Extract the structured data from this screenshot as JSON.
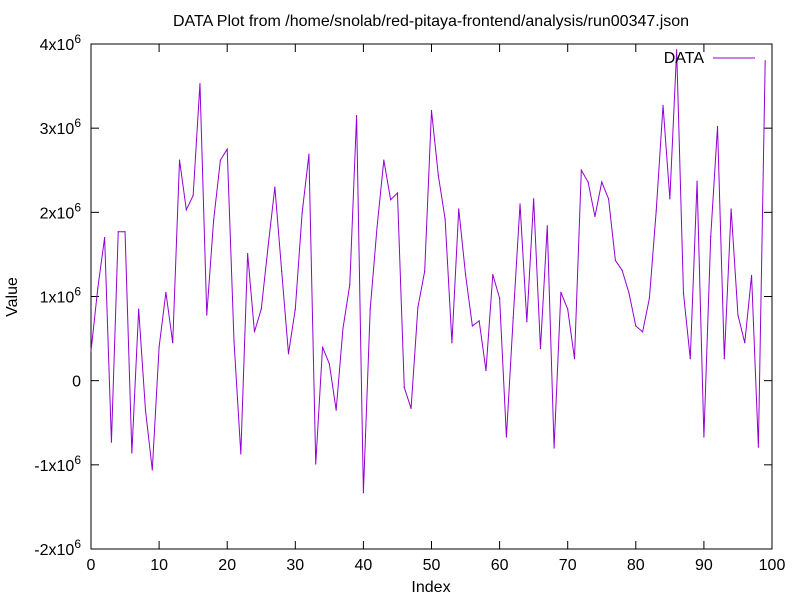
{
  "chart_data": {
    "type": "line",
    "title": "DATA Plot from /home/snolab/red-pitaya-frontend/analysis/run00347.json",
    "xlabel": "Index",
    "ylabel": "Value",
    "xlim": [
      0,
      100
    ],
    "ylim": [
      -2000000,
      4000000
    ],
    "x_ticks": [
      0,
      10,
      20,
      30,
      40,
      50,
      60,
      70,
      80,
      90,
      100
    ],
    "y_ticks": [
      {
        "value": 4000000,
        "base": "4x10",
        "exp": "6"
      },
      {
        "value": 3000000,
        "base": "3x10",
        "exp": "6"
      },
      {
        "value": 2000000,
        "base": "2x10",
        "exp": "6"
      },
      {
        "value": 1000000,
        "base": "1x10",
        "exp": "6"
      },
      {
        "value": 0,
        "base": "0",
        "exp": ""
      },
      {
        "value": -1000000,
        "base": "-1x10",
        "exp": "6"
      },
      {
        "value": -2000000,
        "base": "-2x10",
        "exp": "6"
      }
    ],
    "grid": false,
    "legend_position": "top-right",
    "series": [
      {
        "name": "DATA",
        "color": "#9400d3",
        "x": [
          0,
          1,
          2,
          3,
          4,
          5,
          6,
          7,
          8,
          9,
          10,
          11,
          12,
          13,
          14,
          15,
          16,
          17,
          18,
          19,
          20,
          21,
          22,
          23,
          24,
          25,
          26,
          27,
          28,
          29,
          30,
          31,
          32,
          33,
          34,
          35,
          36,
          37,
          38,
          39,
          40,
          41,
          42,
          43,
          44,
          45,
          46,
          47,
          48,
          49,
          50,
          51,
          52,
          53,
          54,
          55,
          56,
          57,
          58,
          59,
          60,
          61,
          62,
          63,
          64,
          65,
          66,
          67,
          68,
          69,
          70,
          71,
          72,
          73,
          74,
          75,
          76,
          77,
          78,
          79,
          80,
          81,
          82,
          83,
          84,
          85,
          86,
          87,
          88,
          89,
          90,
          91,
          92,
          93,
          94,
          95,
          96,
          97,
          98,
          99
        ],
        "values": [
          350000,
          1100000,
          1700000,
          -730000,
          1770000,
          1770000,
          -860000,
          850000,
          -350000,
          -1060000,
          400000,
          1050000,
          450000,
          2620000,
          2030000,
          2200000,
          3530000,
          780000,
          1900000,
          2620000,
          2750000,
          470000,
          -870000,
          1510000,
          580000,
          850000,
          1590000,
          2300000,
          1300000,
          320000,
          850000,
          1990000,
          2690000,
          -990000,
          400000,
          200000,
          -350000,
          620000,
          1140000,
          3150000,
          -1330000,
          850000,
          1820000,
          2620000,
          2150000,
          2230000,
          -80000,
          -330000,
          870000,
          1300000,
          3210000,
          2440000,
          1920000,
          450000,
          2040000,
          1260000,
          650000,
          710000,
          120000,
          1260000,
          980000,
          -670000,
          750000,
          2100000,
          700000,
          2160000,
          380000,
          1840000,
          -800000,
          1050000,
          850000,
          260000,
          2500000,
          2360000,
          1950000,
          2360000,
          2160000,
          1430000,
          1310000,
          1040000,
          650000,
          580000,
          980000,
          2020000,
          3270000,
          2160000,
          3930000,
          1040000,
          260000,
          2370000,
          -670000,
          1710000,
          3020000,
          260000,
          2040000,
          780000,
          450000,
          1250000,
          -790000,
          3800000
        ]
      }
    ]
  }
}
